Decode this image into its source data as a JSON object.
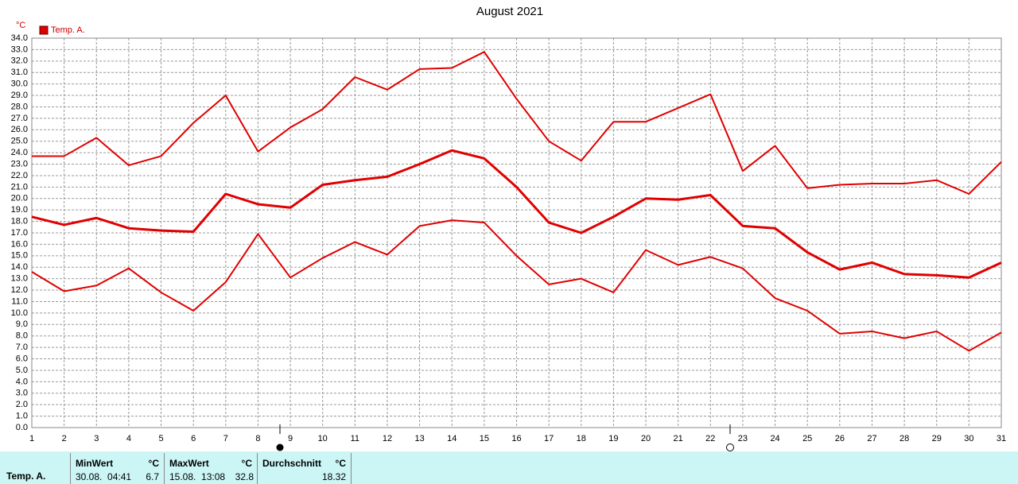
{
  "chart_data": {
    "type": "line",
    "title": "August 2021",
    "y_unit": "°C",
    "x": [
      1,
      2,
      3,
      4,
      5,
      6,
      7,
      8,
      9,
      10,
      11,
      12,
      13,
      14,
      15,
      16,
      17,
      18,
      19,
      20,
      21,
      22,
      23,
      24,
      25,
      26,
      27,
      28,
      29,
      30,
      31
    ],
    "xlim": [
      1,
      31
    ],
    "xticks": [
      1,
      2,
      3,
      4,
      5,
      6,
      7,
      8,
      9,
      10,
      11,
      12,
      13,
      14,
      15,
      16,
      17,
      18,
      19,
      20,
      21,
      22,
      23,
      24,
      25,
      26,
      27,
      28,
      29,
      30,
      31
    ],
    "ylim": [
      0,
      34
    ],
    "yticks": [
      {
        "value": 0,
        "label": "0.0"
      },
      {
        "value": 1,
        "label": "1.0"
      },
      {
        "value": 2,
        "label": "2.0"
      },
      {
        "value": 3,
        "label": "3.0"
      },
      {
        "value": 4,
        "label": "4.0"
      },
      {
        "value": 5,
        "label": "5.0"
      },
      {
        "value": 6,
        "label": "6.0"
      },
      {
        "value": 7,
        "label": "7.0"
      },
      {
        "value": 8,
        "label": "8.0"
      },
      {
        "value": 9,
        "label": "9.0"
      },
      {
        "value": 10,
        "label": "10.0"
      },
      {
        "value": 11,
        "label": "11.0"
      },
      {
        "value": 12,
        "label": "12.0"
      },
      {
        "value": 13,
        "label": "13.0"
      },
      {
        "value": 14,
        "label": "14.0"
      },
      {
        "value": 15,
        "label": "15.0"
      },
      {
        "value": 16,
        "label": "16.0"
      },
      {
        "value": 17,
        "label": "17.0"
      },
      {
        "value": 18,
        "label": "18.0"
      },
      {
        "value": 19,
        "label": "19.0"
      },
      {
        "value": 20,
        "label": "20.0"
      },
      {
        "value": 21,
        "label": "21.0"
      },
      {
        "value": 22,
        "label": "22.0"
      },
      {
        "value": 23,
        "label": "23.0"
      },
      {
        "value": 24,
        "label": "24.0"
      },
      {
        "value": 25,
        "label": "25.0"
      },
      {
        "value": 26,
        "label": "26.0"
      },
      {
        "value": 27,
        "label": "27.0"
      },
      {
        "value": 28,
        "label": "28.0"
      },
      {
        "value": 29,
        "label": "29.0"
      },
      {
        "value": 30,
        "label": "30.0"
      },
      {
        "value": 31,
        "label": "31.0"
      },
      {
        "value": 32,
        "label": "32.0"
      },
      {
        "value": 33,
        "label": "33.0"
      },
      {
        "value": 34,
        "label": "34.0"
      }
    ],
    "grid": true,
    "series": [
      {
        "name": "Temp. A.",
        "color": "#e00000",
        "values": [
          18.4,
          17.7,
          18.3,
          17.4,
          17.2,
          17.1,
          20.4,
          19.5,
          19.2,
          21.2,
          21.6,
          21.9,
          23.0,
          24.2,
          23.5,
          21.0,
          17.9,
          17.0,
          18.4,
          20.0,
          19.9,
          20.3,
          17.6,
          17.4,
          15.3,
          13.8,
          14.4,
          13.4,
          13.3,
          13.1,
          14.4
        ]
      },
      {
        "color": "#e00000",
        "values": [
          23.7,
          23.7,
          25.3,
          22.9,
          23.7,
          26.6,
          29.0,
          24.1,
          26.2,
          27.8,
          30.6,
          29.5,
          31.3,
          31.4,
          32.8,
          28.7,
          25.0,
          23.3,
          26.7,
          26.7,
          27.9,
          29.1,
          22.4,
          24.6,
          20.9,
          21.2,
          21.3,
          21.3,
          21.6,
          20.4,
          23.2
        ]
      },
      {
        "color": "#e00000",
        "values": [
          13.6,
          11.9,
          12.4,
          13.9,
          11.8,
          10.2,
          12.7,
          16.9,
          13.1,
          14.8,
          16.2,
          15.1,
          17.6,
          18.1,
          17.9,
          15.0,
          12.5,
          13.0,
          11.8,
          15.5,
          14.2,
          14.9,
          13.9,
          11.3,
          10.2,
          8.2,
          8.4,
          7.8,
          8.4,
          6.7,
          8.3
        ]
      }
    ]
  },
  "summary": {
    "row_label": "Temp. A.",
    "min": {
      "header": "MinWert",
      "unit": "°C",
      "time": "30.08.  04:41",
      "value": "6.7"
    },
    "max": {
      "header": "MaxWert",
      "unit": "°C",
      "time": "15.08.  13:08",
      "value": "32.8"
    },
    "avg": {
      "header": "Durchschnitt",
      "unit": "°C",
      "value": "18.32"
    }
  }
}
